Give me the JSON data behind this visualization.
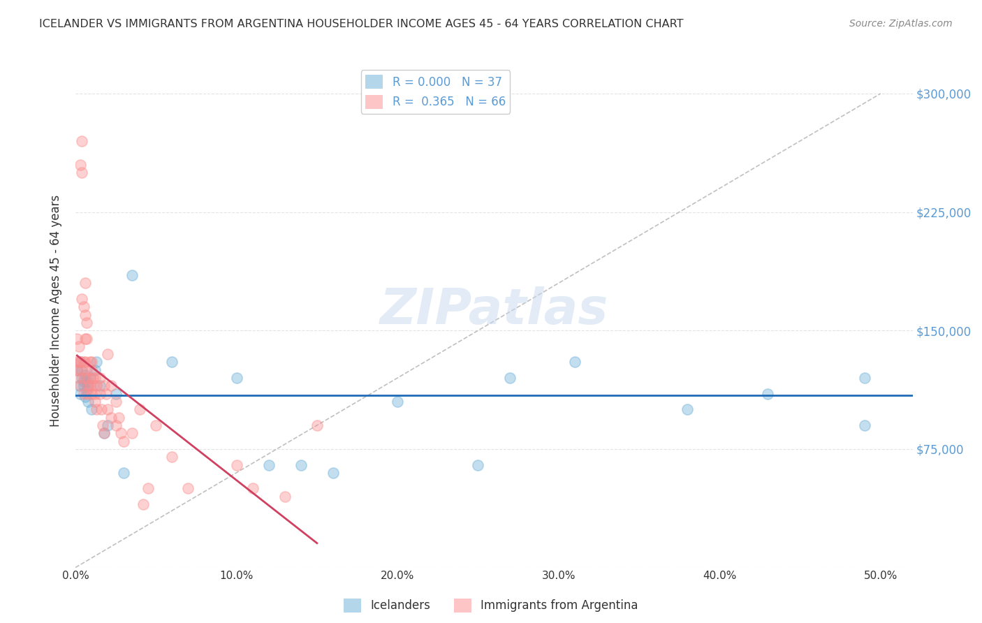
{
  "title": "ICELANDER VS IMMIGRANTS FROM ARGENTINA HOUSEHOLDER INCOME AGES 45 - 64 YEARS CORRELATION CHART",
  "source": "Source: ZipAtlas.com",
  "ylabel": "Householder Income Ages 45 - 64 years",
  "xlabel_ticks": [
    0.0,
    0.1,
    0.2,
    0.3,
    0.4,
    0.5
  ],
  "xlabel_labels": [
    "0.0%",
    "10.0%",
    "20.0%",
    "30.0%",
    "40.0%",
    "50.0%"
  ],
  "ytick_values": [
    0,
    75000,
    150000,
    225000,
    300000
  ],
  "ytick_labels": [
    "",
    "$75,000",
    "$150,000",
    "$225,000",
    "$300,000"
  ],
  "ylim": [
    0,
    325000
  ],
  "xlim": [
    0.0,
    0.52
  ],
  "legend_r1": "R = 0.000",
  "legend_n1": "N = 37",
  "legend_r2": "R =  0.365",
  "legend_n2": "N = 66",
  "icelanders_color": "#6baed6",
  "argentina_color": "#fc8d8d",
  "icelanders_line_color": "#1f6bb5",
  "argentina_line_color": "#d04060",
  "diagonal_color": "#c0c0c0",
  "icelanders_x": [
    0.001,
    0.002,
    0.003,
    0.003,
    0.004,
    0.004,
    0.005,
    0.005,
    0.006,
    0.006,
    0.007,
    0.007,
    0.008,
    0.008,
    0.009,
    0.01,
    0.012,
    0.013,
    0.015,
    0.018,
    0.02,
    0.025,
    0.03,
    0.035,
    0.06,
    0.1,
    0.12,
    0.14,
    0.16,
    0.2,
    0.25,
    0.27,
    0.31,
    0.38,
    0.43,
    0.49,
    0.49
  ],
  "icelanders_y": [
    125000,
    115000,
    130000,
    110000,
    125000,
    120000,
    115000,
    118000,
    122000,
    108000,
    112000,
    118000,
    105000,
    115000,
    120000,
    100000,
    125000,
    130000,
    115000,
    85000,
    90000,
    110000,
    60000,
    185000,
    130000,
    120000,
    65000,
    65000,
    60000,
    105000,
    65000,
    120000,
    130000,
    100000,
    110000,
    90000,
    120000
  ],
  "argentina_x": [
    0.001,
    0.001,
    0.001,
    0.002,
    0.002,
    0.002,
    0.003,
    0.003,
    0.003,
    0.003,
    0.004,
    0.004,
    0.004,
    0.005,
    0.005,
    0.005,
    0.005,
    0.006,
    0.006,
    0.006,
    0.006,
    0.007,
    0.007,
    0.007,
    0.008,
    0.008,
    0.008,
    0.009,
    0.009,
    0.01,
    0.01,
    0.01,
    0.011,
    0.011,
    0.012,
    0.012,
    0.012,
    0.013,
    0.013,
    0.015,
    0.015,
    0.016,
    0.017,
    0.018,
    0.018,
    0.019,
    0.02,
    0.02,
    0.022,
    0.022,
    0.025,
    0.025,
    0.027,
    0.028,
    0.03,
    0.035,
    0.04,
    0.042,
    0.045,
    0.05,
    0.06,
    0.07,
    0.1,
    0.11,
    0.13,
    0.15
  ],
  "argentina_y": [
    130000,
    125000,
    145000,
    140000,
    120000,
    130000,
    255000,
    130000,
    125000,
    115000,
    270000,
    250000,
    170000,
    165000,
    130000,
    120000,
    110000,
    180000,
    160000,
    145000,
    130000,
    155000,
    145000,
    125000,
    120000,
    115000,
    110000,
    130000,
    115000,
    130000,
    125000,
    110000,
    120000,
    115000,
    120000,
    110000,
    105000,
    115000,
    100000,
    120000,
    110000,
    100000,
    90000,
    85000,
    115000,
    110000,
    135000,
    100000,
    115000,
    95000,
    105000,
    90000,
    95000,
    85000,
    80000,
    85000,
    100000,
    40000,
    50000,
    90000,
    70000,
    50000,
    65000,
    50000,
    45000,
    90000
  ],
  "bg_color": "#ffffff",
  "watermark": "ZIPatlas",
  "marker_size": 120,
  "marker_alpha": 0.4,
  "marker_linewidth": 1.2
}
